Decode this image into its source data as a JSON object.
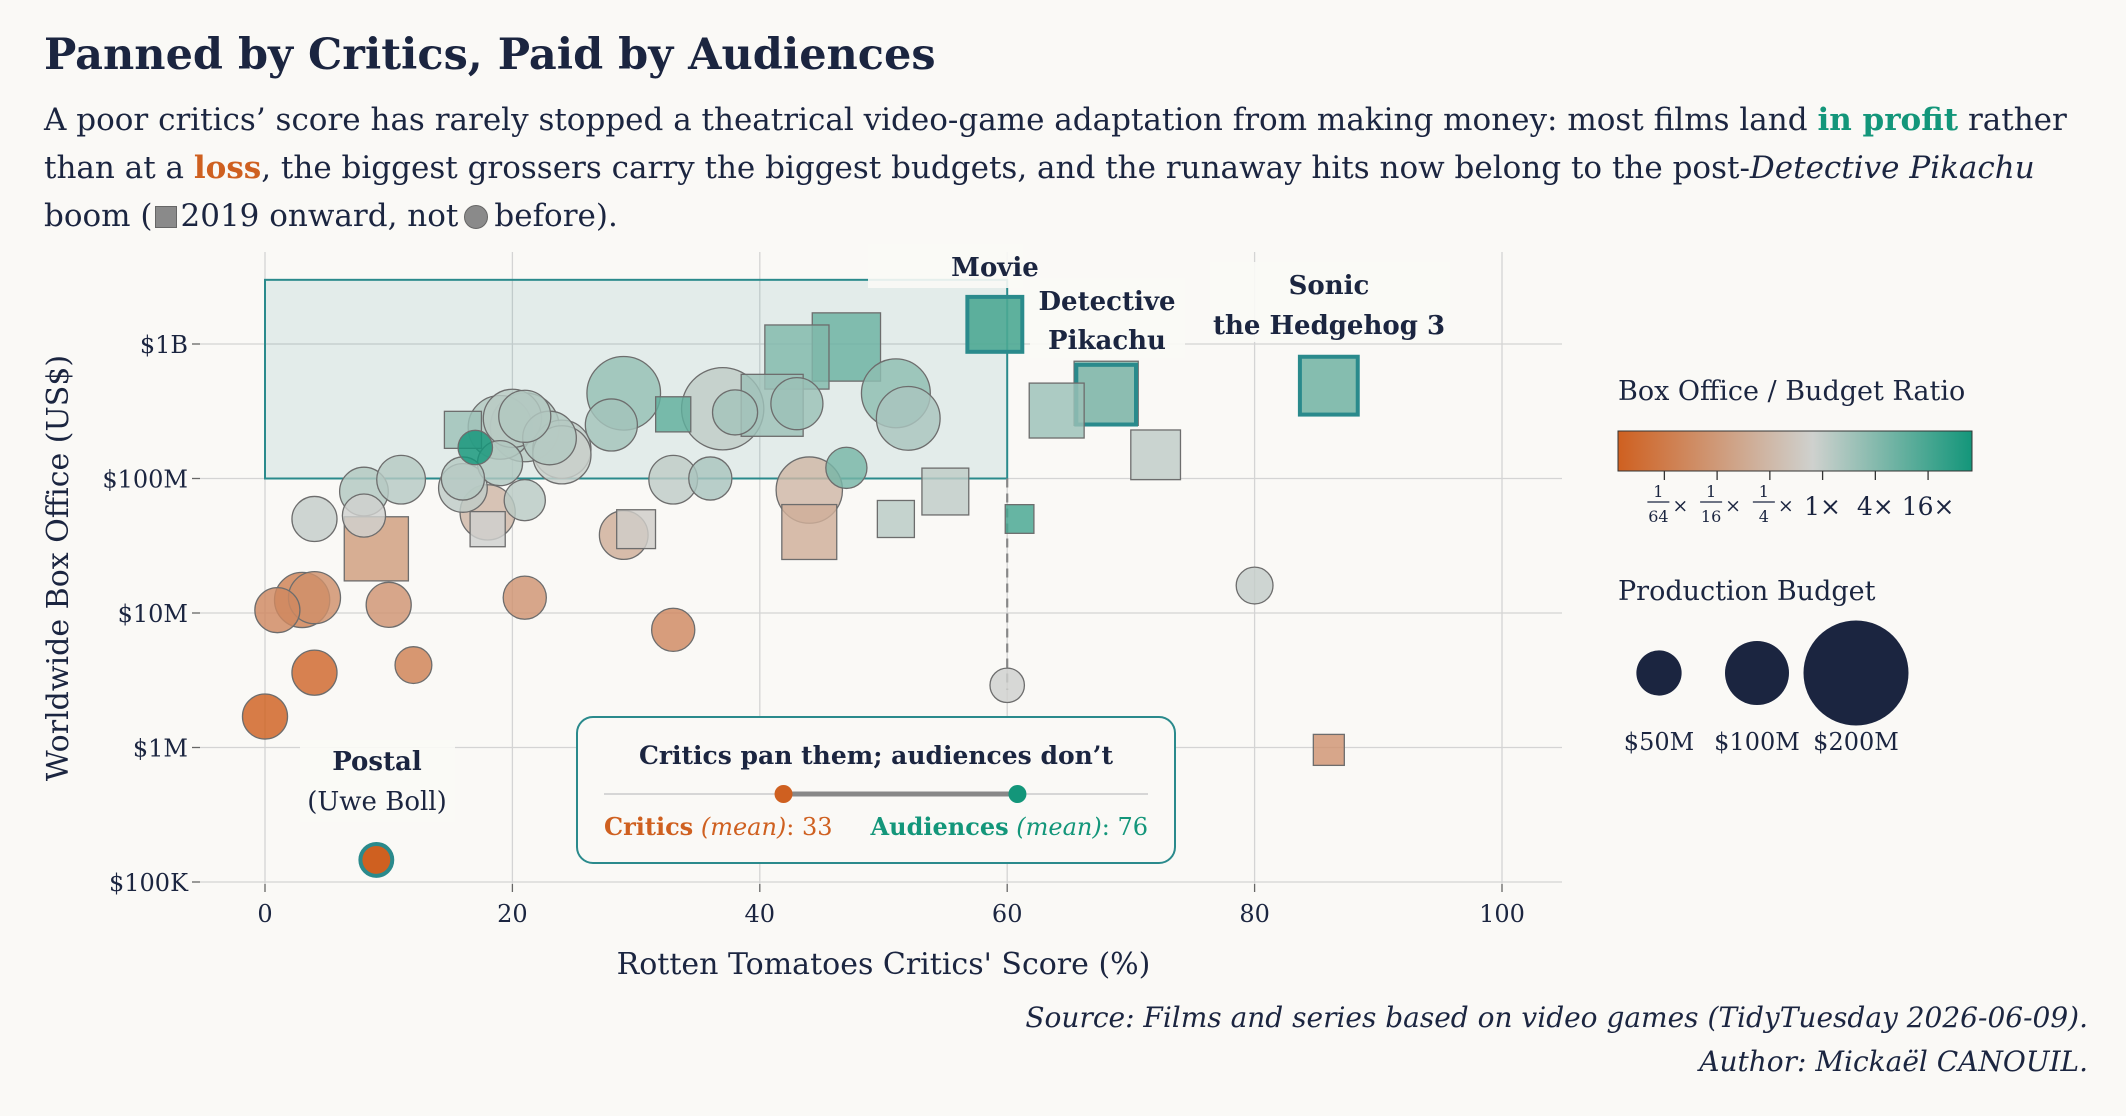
{
  "title": "Panned by Critics, Paid by Audiences",
  "subtitle": {
    "part1": "A poor critics’ score has rarely stopped a theatrical video-game adaptation from making money: most films land ",
    "profit": "in profit",
    "part2": " rather than at a ",
    "loss": "loss",
    "part3": ", the biggest grossers carry the biggest budgets, and the runaway hits now belong to the post-",
    "italic": "Detective Pikachu",
    "part4": " boom (",
    "square_note": "2019 onward, not",
    "circle_note": "before)."
  },
  "source": {
    "line1": "Source: Films and series based on video games (TidyTuesday 2026-06-09).",
    "line2": "Author: Mickaël CANOUIL."
  },
  "colors": {
    "loss": "#cf6020",
    "neutral": "#cfd1ce",
    "profit": "#13967a",
    "highlight_box": "#2a8a8c",
    "text": "#1b2540"
  },
  "chart_data": {
    "type": "scatter",
    "xlabel": "Rotten Tomatoes Critics' Score (%)",
    "ylabel": "Worldwide Box Office (US$)",
    "x_ticks": [
      0,
      20,
      40,
      60,
      80,
      100
    ],
    "xlim": [
      -5,
      105
    ],
    "y_ticks": [
      {
        "value": 100000,
        "label": "$100K"
      },
      {
        "value": 1000000,
        "label": "$1M"
      },
      {
        "value": 10000000,
        "label": "$10M"
      },
      {
        "value": 100000000,
        "label": "$100M"
      },
      {
        "value": 1000000000,
        "label": "$1B"
      }
    ],
    "y_scale": "log",
    "ylim": [
      70000,
      4000000000
    ],
    "grid": true,
    "profit_zone": {
      "x": [
        0,
        60
      ],
      "y": [
        100000000,
        3000000000
      ]
    },
    "threshold_x": 60,
    "points": [
      {
        "x": 0,
        "y": 1700000,
        "budget": 60,
        "ratio": 0.03,
        "era": "pre"
      },
      {
        "x": 1,
        "y": 10500000,
        "budget": 60,
        "ratio": 0.15,
        "era": "pre"
      },
      {
        "x": 3,
        "y": 12500000,
        "budget": 90,
        "ratio": 0.12,
        "era": "pre"
      },
      {
        "x": 4,
        "y": 13000000,
        "budget": 80,
        "ratio": 0.18,
        "era": "pre"
      },
      {
        "x": 4,
        "y": 3600000,
        "budget": 60,
        "ratio": 0.06,
        "era": "pre"
      },
      {
        "x": 4,
        "y": 50000000,
        "budget": 60,
        "ratio": 1.2,
        "era": "pre"
      },
      {
        "x": 8,
        "y": 80000000,
        "budget": 70,
        "ratio": 1.6,
        "era": "pre"
      },
      {
        "x": 8,
        "y": 53000000,
        "budget": 55,
        "ratio": 1.0,
        "era": "pre"
      },
      {
        "x": 9,
        "y": 30000000,
        "budget": 150,
        "ratio": 0.25,
        "era": "post"
      },
      {
        "x": 10,
        "y": 11500000,
        "budget": 60,
        "ratio": 0.2,
        "era": "pre"
      },
      {
        "x": 11,
        "y": 98000000,
        "budget": 70,
        "ratio": 1.5,
        "era": "pre"
      },
      {
        "x": 12,
        "y": 4100000,
        "budget": 40,
        "ratio": 0.12,
        "era": "pre"
      },
      {
        "x": 16,
        "y": 230000000,
        "budget": 50,
        "ratio": 2.2,
        "era": "post"
      },
      {
        "x": 16,
        "y": 100000000,
        "budget": 55,
        "ratio": 1.5,
        "era": "pre"
      },
      {
        "x": 16,
        "y": 85000000,
        "budget": 70,
        "ratio": 1.3,
        "era": "pre"
      },
      {
        "x": 17,
        "y": 170000000,
        "budget": 35,
        "ratio": 20,
        "era": "pre"
      },
      {
        "x": 18,
        "y": 56000000,
        "budget": 90,
        "ratio": 0.5,
        "era": "pre"
      },
      {
        "x": 18,
        "y": 42000000,
        "budget": 45,
        "ratio": 1.0,
        "era": "post"
      },
      {
        "x": 19,
        "y": 130000000,
        "budget": 60,
        "ratio": 1.6,
        "era": "pre"
      },
      {
        "x": 19,
        "y": 240000000,
        "budget": 120,
        "ratio": 1.6,
        "era": "pre"
      },
      {
        "x": 20,
        "y": 280000000,
        "budget": 100,
        "ratio": 1.4,
        "era": "pre"
      },
      {
        "x": 21,
        "y": 290000000,
        "budget": 80,
        "ratio": 1.6,
        "era": "pre"
      },
      {
        "x": 21,
        "y": 240000000,
        "budget": 140,
        "ratio": 1.4,
        "era": "pre"
      },
      {
        "x": 21,
        "y": 69000000,
        "budget": 50,
        "ratio": 1.4,
        "era": "pre"
      },
      {
        "x": 21,
        "y": 13000000,
        "budget": 55,
        "ratio": 0.2,
        "era": "pre"
      },
      {
        "x": 23,
        "y": 200000000,
        "budget": 85,
        "ratio": 1.6,
        "era": "pre"
      },
      {
        "x": 24,
        "y": 165000000,
        "budget": 100,
        "ratio": 1.3,
        "era": "pre"
      },
      {
        "x": 24,
        "y": 150000000,
        "budget": 100,
        "ratio": 1.1,
        "era": "pre"
      },
      {
        "x": 28,
        "y": 250000000,
        "budget": 80,
        "ratio": 2.0,
        "era": "pre"
      },
      {
        "x": 29,
        "y": 430000000,
        "budget": 160,
        "ratio": 2.5,
        "era": "pre"
      },
      {
        "x": 29,
        "y": 38000000,
        "budget": 70,
        "ratio": 0.4,
        "era": "pre"
      },
      {
        "x": 30,
        "y": 42000000,
        "budget": 55,
        "ratio": 0.9,
        "era": "post"
      },
      {
        "x": 33,
        "y": 98000000,
        "budget": 70,
        "ratio": 1.3,
        "era": "pre"
      },
      {
        "x": 33,
        "y": 7500000,
        "budget": 55,
        "ratio": 0.15,
        "era": "pre"
      },
      {
        "x": 33,
        "y": 300000000,
        "budget": 45,
        "ratio": 6,
        "era": "post"
      },
      {
        "x": 36,
        "y": 100000000,
        "budget": 55,
        "ratio": 1.8,
        "era": "pre"
      },
      {
        "x": 37,
        "y": 330000000,
        "budget": 200,
        "ratio": 1.3,
        "era": "pre"
      },
      {
        "x": 38,
        "y": 310000000,
        "budget": 60,
        "ratio": 2.0,
        "era": "pre"
      },
      {
        "x": 41,
        "y": 350000000,
        "budget": 140,
        "ratio": 2.2,
        "era": "post"
      },
      {
        "x": 43,
        "y": 360000000,
        "budget": 80,
        "ratio": 2.3,
        "era": "pre"
      },
      {
        "x": 43,
        "y": 800000000,
        "budget": 150,
        "ratio": 3.5,
        "era": "post"
      },
      {
        "x": 44,
        "y": 82000000,
        "budget": 130,
        "ratio": 0.5,
        "era": "pre"
      },
      {
        "x": 44,
        "y": 40000000,
        "budget": 110,
        "ratio": 0.4,
        "era": "post"
      },
      {
        "x": 47,
        "y": 120000000,
        "budget": 50,
        "ratio": 4,
        "era": "pre"
      },
      {
        "x": 47,
        "y": 950000000,
        "budget": 170,
        "ratio": 5,
        "era": "post"
      },
      {
        "x": 51,
        "y": 50000000,
        "budget": 50,
        "ratio": 1.4,
        "era": "post"
      },
      {
        "x": 51,
        "y": 430000000,
        "budget": 140,
        "ratio": 2.8,
        "era": "pre"
      },
      {
        "x": 52,
        "y": 280000000,
        "budget": 120,
        "ratio": 1.8,
        "era": "pre"
      },
      {
        "x": 55,
        "y": 80000000,
        "budget": 80,
        "ratio": 1.3,
        "era": "post"
      },
      {
        "x": 59,
        "y": 1400000000,
        "budget": 110,
        "ratio": 8,
        "era": "post",
        "label": "movie",
        "highlight": true
      },
      {
        "x": 61,
        "y": 50000000,
        "budget": 30,
        "ratio": 9,
        "era": "post"
      },
      {
        "x": 60,
        "y": 2900000,
        "budget": 35,
        "ratio": 1.0,
        "era": "pre"
      },
      {
        "x": 64,
        "y": 320000000,
        "budget": 110,
        "ratio": 2.3,
        "era": "post"
      },
      {
        "x": 68,
        "y": 430000000,
        "budget": 150,
        "ratio": 3.0,
        "era": "post"
      },
      {
        "x": 68,
        "y": 420000000,
        "budget": 130,
        "ratio": 3.0,
        "era": "post",
        "label": "pikachu",
        "highlight": true
      },
      {
        "x": 72,
        "y": 150000000,
        "budget": 90,
        "ratio": 1.3,
        "era": "post"
      },
      {
        "x": 80,
        "y": 16000000,
        "budget": 40,
        "ratio": 1.2,
        "era": "pre"
      },
      {
        "x": 86,
        "y": 490000000,
        "budget": 122,
        "ratio": 4,
        "era": "post",
        "label": "sonic",
        "highlight": true
      },
      {
        "x": 86,
        "y": 960000,
        "budget": 35,
        "ratio": 0.2,
        "era": "post"
      },
      {
        "x": 9,
        "y": 146000,
        "budget": 30,
        "ratio": 0.02,
        "era": "pre",
        "label": "postal",
        "highlight": true
      }
    ],
    "annotations": {
      "movie": "Movie",
      "pikachu_line1": "Detective",
      "pikachu_line2": "Pikachu",
      "sonic_line1": "Sonic",
      "sonic_line2": "the Hedgehog 3",
      "postal_line1": "Postal",
      "postal_line2": "(Uwe Boll)"
    },
    "callout": {
      "title": "Critics pan them; audiences don’t",
      "critics_label": "Critics",
      "critics_mean_label": "(mean)",
      "critics_mean": 33,
      "audiences_label": "Audiences",
      "audiences_mean_label": "(mean)",
      "audiences_mean": 76
    },
    "legend": {
      "ratio_title": "Box Office / Budget Ratio",
      "ratio_ticks": [
        {
          "num": "1",
          "den": "64",
          "value": 0.015625
        },
        {
          "num": "1",
          "den": "16",
          "value": 0.0625
        },
        {
          "num": "1",
          "den": "4",
          "value": 0.25
        },
        {
          "text": "1×",
          "value": 1
        },
        {
          "text": "4×",
          "value": 4
        },
        {
          "text": "16×",
          "value": 16
        }
      ],
      "budget_title": "Production Budget",
      "budget_sizes": [
        {
          "budget": 50,
          "label": "$50M"
        },
        {
          "budget": 100,
          "label": "$100M"
        },
        {
          "budget": 200,
          "label": "$200M"
        }
      ]
    }
  }
}
